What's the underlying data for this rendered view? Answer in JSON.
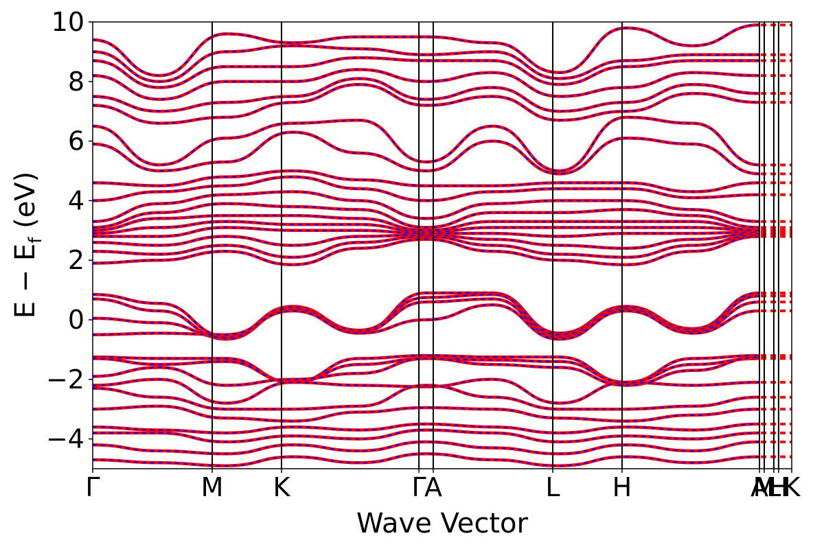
{
  "chart_data": {
    "type": "line",
    "xlabel": "Wave Vector",
    "ylabel_main": "E − E",
    "ylabel_sub": "f",
    "ylabel_unit": " (eV)",
    "ylim": [
      -5,
      10
    ],
    "yticks": [
      -4,
      -2,
      0,
      2,
      4,
      6,
      8,
      10
    ],
    "ytick_labels": [
      "−4",
      "−2",
      "0",
      "2",
      "4",
      "6",
      "8",
      "10"
    ],
    "kpath": [
      {
        "label": "Γ",
        "x": 0.0
      },
      {
        "label": "M",
        "x": 1.0
      },
      {
        "label": "K",
        "x": 1.58
      },
      {
        "label": "Γ",
        "x": 2.73
      },
      {
        "label": "A",
        "x": 2.85
      },
      {
        "label": "L",
        "x": 3.85
      },
      {
        "label": "H",
        "x": 4.43
      },
      {
        "label": "A",
        "x": 5.58
      },
      {
        "label": "M",
        "x": 5.62
      },
      {
        "label": "L",
        "x": 5.7
      },
      {
        "label": "H",
        "x": 5.74
      },
      {
        "label": "K",
        "x": 5.85
      }
    ],
    "series_colors": {
      "red": "#ff0000",
      "blue": "#0000ff"
    },
    "series": [
      {
        "values": [
          0.85,
          0.55,
          -0.55,
          0.45,
          -0.4,
          0.9,
          0.9,
          -0.45,
          0.45,
          -0.3,
          0.9
        ]
      },
      {
        "values": [
          0.7,
          0.3,
          -0.65,
          0.4,
          -0.35,
          0.75,
          0.85,
          -0.5,
          0.4,
          -0.35,
          0.8
        ]
      },
      {
        "values": [
          0.05,
          -0.1,
          -0.6,
          0.35,
          -0.4,
          0.6,
          0.7,
          -0.6,
          0.35,
          -0.4,
          0.6
        ]
      },
      {
        "values": [
          -0.5,
          -0.45,
          -0.5,
          0.3,
          -0.45,
          0.0,
          0.5,
          -0.65,
          0.3,
          -0.45,
          0.3
        ]
      },
      {
        "values": [
          -1.25,
          -1.3,
          -1.3,
          -2.1,
          -1.3,
          -1.2,
          -1.25,
          -1.25,
          -2.1,
          -1.3,
          -1.2
        ]
      },
      {
        "values": [
          -1.3,
          -1.5,
          -1.4,
          -2.1,
          -1.5,
          -1.3,
          -1.35,
          -1.4,
          -2.1,
          -1.5,
          -1.3
        ]
      },
      {
        "values": [
          -1.9,
          -1.6,
          -2.2,
          -2.0,
          -1.8,
          -1.3,
          -1.5,
          -1.6,
          -2.2,
          -1.7,
          -1.25
        ]
      },
      {
        "values": [
          -2.2,
          -2.0,
          -2.8,
          -2.1,
          -2.2,
          -2.25,
          -2.0,
          -2.8,
          -2.1,
          -2.2,
          -2.1
        ]
      },
      {
        "values": [
          -2.3,
          -2.6,
          -3.0,
          -3.0,
          -2.9,
          -2.2,
          -2.6,
          -3.0,
          -3.0,
          -2.9,
          -2.6
        ]
      },
      {
        "values": [
          -3.0,
          -2.9,
          -3.3,
          -3.4,
          -3.1,
          -2.95,
          -3.0,
          -3.3,
          -3.4,
          -3.2,
          -3.0
        ]
      },
      {
        "values": [
          -3.6,
          -3.7,
          -3.8,
          -3.6,
          -3.7,
          -3.5,
          -3.6,
          -3.8,
          -3.6,
          -3.7,
          -3.5
        ]
      },
      {
        "values": [
          -3.8,
          -3.8,
          -4.1,
          -3.9,
          -4.0,
          -3.7,
          -3.8,
          -4.1,
          -3.9,
          -4.0,
          -3.8
        ]
      },
      {
        "values": [
          -4.2,
          -4.4,
          -4.5,
          -4.2,
          -4.4,
          -4.1,
          -4.3,
          -4.5,
          -4.2,
          -4.4,
          -4.1
        ]
      },
      {
        "values": [
          -4.7,
          -4.8,
          -4.9,
          -4.6,
          -4.8,
          -4.5,
          -4.7,
          -4.9,
          -4.6,
          -4.8,
          -4.6
        ]
      },
      {
        "values": [
          1.9,
          2.0,
          2.3,
          1.85,
          2.4,
          2.7,
          2.3,
          2.0,
          1.85,
          2.3,
          2.8
        ]
      },
      {
        "values": [
          2.3,
          2.2,
          2.5,
          2.1,
          2.6,
          2.8,
          2.5,
          2.2,
          2.1,
          2.5,
          2.85
        ]
      },
      {
        "values": [
          2.6,
          2.5,
          2.8,
          2.5,
          2.8,
          2.85,
          2.7,
          2.5,
          2.4,
          2.7,
          2.9
        ]
      },
      {
        "values": [
          2.8,
          2.8,
          3.1,
          3.0,
          3.0,
          2.9,
          2.9,
          2.8,
          2.9,
          2.9,
          2.95
        ]
      },
      {
        "values": [
          2.9,
          3.1,
          3.3,
          3.2,
          3.2,
          2.95,
          3.1,
          3.1,
          3.1,
          3.1,
          3.0
        ]
      },
      {
        "values": [
          3.0,
          3.4,
          3.5,
          3.5,
          3.4,
          3.0,
          3.3,
          3.3,
          3.3,
          3.3,
          3.0
        ]
      },
      {
        "values": [
          3.1,
          3.6,
          3.9,
          3.8,
          3.7,
          3.1,
          3.6,
          3.6,
          3.7,
          3.5,
          3.1
        ]
      },
      {
        "values": [
          3.3,
          3.9,
          4.2,
          4.3,
          4.0,
          3.4,
          3.9,
          4.0,
          4.0,
          3.7,
          3.3
        ]
      },
      {
        "values": [
          4.0,
          4.3,
          4.5,
          4.8,
          4.4,
          4.0,
          4.3,
          4.4,
          4.4,
          4.1,
          4.2
        ]
      },
      {
        "values": [
          4.6,
          4.5,
          4.8,
          5.0,
          4.7,
          4.5,
          4.5,
          4.6,
          4.6,
          4.3,
          4.6
        ]
      },
      {
        "values": [
          5.9,
          5.0,
          5.3,
          6.3,
          5.6,
          5.0,
          6.0,
          4.9,
          6.1,
          5.9,
          4.9
        ]
      },
      {
        "values": [
          6.5,
          5.2,
          6.1,
          6.6,
          6.7,
          5.3,
          6.5,
          5.0,
          6.8,
          6.6,
          5.2
        ]
      },
      {
        "values": [
          7.2,
          6.6,
          6.8,
          7.3,
          7.9,
          7.2,
          7.5,
          6.7,
          7.0,
          7.6,
          7.3
        ]
      },
      {
        "values": [
          7.5,
          7.0,
          7.3,
          7.5,
          8.1,
          7.4,
          7.8,
          7.0,
          7.3,
          7.9,
          7.6
        ]
      },
      {
        "values": [
          8.2,
          7.4,
          8.0,
          8.0,
          8.4,
          8.0,
          8.3,
          7.5,
          7.8,
          8.3,
          8.2
        ]
      },
      {
        "values": [
          8.7,
          7.8,
          8.5,
          8.5,
          8.8,
          8.7,
          8.7,
          7.9,
          8.5,
          8.7,
          8.7
        ]
      },
      {
        "values": [
          9.0,
          8.0,
          9.0,
          9.2,
          9.1,
          8.9,
          9.0,
          8.1,
          8.7,
          8.9,
          8.9
        ]
      },
      {
        "values": [
          9.4,
          8.2,
          9.6,
          9.3,
          9.5,
          9.5,
          9.3,
          8.3,
          9.8,
          9.2,
          9.9
        ]
      }
    ]
  }
}
